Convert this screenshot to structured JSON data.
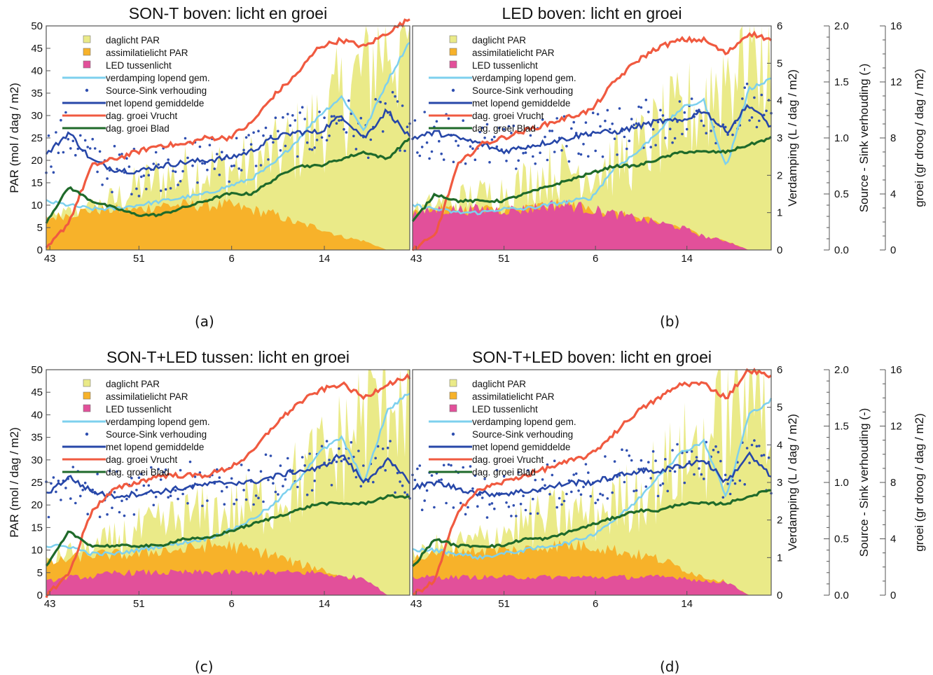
{
  "captions": [
    "(a)",
    "(b)",
    "(c)",
    "(d)"
  ],
  "colors": {
    "daglicht": "#eaea88",
    "assimilatie": "#f7b22a",
    "led": "#e2509a",
    "verdamping": "#7dd0ee",
    "sourcesink_dots": "#2f4fb0",
    "sourcesink_avg": "#2747a8",
    "vrucht": "#f05a40",
    "blad": "#1f6a2a",
    "frame": "#555555"
  },
  "shared_axes": {
    "x_ticks": [
      "43",
      "51",
      "6",
      "14"
    ],
    "left_label": "PAR (mol / dag / m2)",
    "left_ticks": [
      "0",
      "5",
      "10",
      "15",
      "20",
      "25",
      "30",
      "35",
      "40",
      "45",
      "50"
    ],
    "verdamping_label": "Verdamping (L / dag / m2)",
    "verdamping_ticks": [
      "0",
      "1",
      "2",
      "3",
      "4",
      "5",
      "6"
    ],
    "ss_label": "Source - Sink verhouding (-)",
    "ss_ticks": [
      "0.0",
      "0.5",
      "1.0",
      "1.5",
      "2.0"
    ],
    "groei_label": "groei (gr droog / dag / m2)",
    "groei_ticks": [
      "0",
      "4",
      "8",
      "12",
      "16"
    ]
  },
  "chart_data": [
    {
      "type": "area",
      "title": "SON-T boven: licht en groei",
      "x_ticks": [
        "43",
        "51",
        "6",
        "14"
      ],
      "ylabel": "PAR (mol / dag / m2)",
      "ylim": [
        0,
        50
      ],
      "legend": [
        {
          "name": "daglicht PAR",
          "kind": "box",
          "color": "#eaea88"
        },
        {
          "name": "assimilatielicht PAR",
          "kind": "box",
          "color": "#f7b22a"
        },
        {
          "name": "LED tussenlicht",
          "kind": "box",
          "color": "#e2509a"
        },
        {
          "name": "verdamping lopend gem.",
          "kind": "line",
          "color": "#7dd0ee"
        },
        {
          "name": "Source-Sink verhouding",
          "kind": "dot",
          "color": "#2f4fb0"
        },
        {
          "name": "met lopend gemiddelde",
          "kind": "line",
          "color": "#2747a8"
        },
        {
          "name": "dag. groei Vrucht",
          "kind": "line",
          "color": "#f05a40"
        },
        {
          "name": "dag. groei Blad",
          "kind": "line",
          "color": "#1f6a2a"
        }
      ],
      "daglicht_total": [
        4,
        6,
        7,
        9,
        12,
        14,
        15,
        16,
        16,
        17,
        19,
        22,
        26,
        31,
        38,
        46,
        44
      ],
      "assimilatie_total": [
        7,
        8,
        9,
        9,
        9,
        10,
        10,
        10,
        10,
        9,
        8,
        6,
        5,
        3,
        2,
        0,
        0
      ],
      "led": [
        0,
        0,
        0,
        0,
        0,
        0,
        0,
        0,
        0,
        0,
        0,
        0,
        0,
        0,
        0,
        0,
        0
      ],
      "verdamping": [
        1.3,
        1.2,
        1.1,
        1.1,
        1.2,
        1.3,
        1.4,
        1.5,
        1.7,
        1.9,
        2.3,
        2.9,
        3.6,
        4.1,
        3.2,
        4.5,
        5.6
      ],
      "sourcesink": [
        0.85,
        1.05,
        0.8,
        0.72,
        0.7,
        0.75,
        0.78,
        0.8,
        0.82,
        0.88,
        1.0,
        1.05,
        1.05,
        1.2,
        1.0,
        1.25,
        1.0
      ],
      "vrucht": [
        0,
        2,
        6,
        6.5,
        7,
        7.5,
        7.5,
        8,
        8,
        9,
        11,
        12.5,
        14.5,
        15,
        14.5,
        15.5,
        16.5
      ],
      "blad": [
        2,
        4.5,
        3.5,
        3,
        2.5,
        2.5,
        3,
        3.5,
        4,
        4,
        5,
        6,
        6,
        6.5,
        7,
        6.5,
        8
      ]
    },
    {
      "type": "area",
      "title": "LED boven: licht en groei",
      "x_ticks": [
        "43",
        "51",
        "6",
        "14"
      ],
      "ylabel": "Verdamping (L / dag / m2)",
      "ylim": [
        0,
        6
      ],
      "legend": [
        {
          "name": "daglicht PAR",
          "kind": "box",
          "color": "#eaea88"
        },
        {
          "name": "assimilatielicht PAR",
          "kind": "box",
          "color": "#f7b22a"
        },
        {
          "name": "LED tussenlicht",
          "kind": "box",
          "color": "#e2509a"
        },
        {
          "name": "verdamping lopend gem.",
          "kind": "line",
          "color": "#7dd0ee"
        },
        {
          "name": "Source-Sink verhouding",
          "kind": "dot",
          "color": "#2f4fb0"
        },
        {
          "name": "met lopend gemiddelde",
          "kind": "line",
          "color": "#2747a8"
        },
        {
          "name": "dag. groei Vrucht",
          "kind": "line",
          "color": "#f05a40"
        },
        {
          "name": "dag. groei Blad",
          "kind": "line",
          "color": "#1f6a2a"
        }
      ],
      "daglicht_total": [
        6,
        8,
        9,
        10,
        11,
        13,
        15,
        16,
        16,
        17,
        20,
        24,
        27,
        31,
        38,
        45,
        44
      ],
      "assimilatie_total": [
        8,
        9,
        9,
        9,
        9,
        9,
        10,
        10,
        9,
        8,
        7,
        6,
        5,
        3,
        2,
        0,
        0
      ],
      "led": [
        8,
        9,
        9,
        9,
        9,
        9,
        10,
        10,
        9,
        8,
        7,
        6,
        5,
        3,
        2,
        0,
        0
      ],
      "verdamping": [
        1.2,
        1.1,
        1.0,
        1.0,
        1.1,
        1.1,
        1.2,
        1.3,
        1.4,
        2.2,
        2.6,
        3.2,
        3.8,
        4.0,
        2.2,
        4.3,
        4.6
      ],
      "sourcesink": [
        1.0,
        1.05,
        1.0,
        0.95,
        0.88,
        0.92,
        0.96,
        1.0,
        1.05,
        1.05,
        1.1,
        1.15,
        1.15,
        1.25,
        1.05,
        1.3,
        1.1
      ],
      "vrucht": [
        0,
        1,
        6,
        7.5,
        8,
        8.5,
        9,
        9.5,
        10,
        12,
        13.5,
        14.5,
        15,
        15,
        14,
        15.5,
        15
      ],
      "blad": [
        2,
        4,
        3.5,
        3.5,
        3.5,
        4,
        4.5,
        5,
        5.5,
        6,
        6,
        6.5,
        7,
        7,
        7,
        7.5,
        8
      ]
    },
    {
      "type": "area",
      "title": "SON-T+LED tussen: licht en groei",
      "x_ticks": [
        "43",
        "51",
        "6",
        "14"
      ],
      "ylabel": "PAR (mol / dag / m2)",
      "ylim": [
        0,
        50
      ],
      "legend": [
        {
          "name": "daglicht PAR",
          "kind": "box",
          "color": "#eaea88"
        },
        {
          "name": "assimilatielicht PAR",
          "kind": "box",
          "color": "#f7b22a"
        },
        {
          "name": "LED tussenlicht",
          "kind": "box",
          "color": "#e2509a"
        },
        {
          "name": "verdamping lopend gem.",
          "kind": "line",
          "color": "#7dd0ee"
        },
        {
          "name": "Source-Sink verhouding",
          "kind": "dot",
          "color": "#2f4fb0"
        },
        {
          "name": "met lopend gemiddelde",
          "kind": "line",
          "color": "#2747a8"
        },
        {
          "name": "dag. groei Vrucht",
          "kind": "line",
          "color": "#f05a40"
        },
        {
          "name": "dag. groei Blad",
          "kind": "line",
          "color": "#1f6a2a"
        }
      ],
      "daglicht_total": [
        5,
        7,
        8,
        10,
        12,
        13,
        15,
        16,
        16,
        18,
        20,
        23,
        27,
        31,
        38,
        45,
        44
      ],
      "assimilatie_total": [
        7,
        8,
        9,
        9,
        9,
        10,
        10,
        11,
        11,
        10,
        9,
        7,
        6,
        4,
        3,
        0,
        0
      ],
      "led": [
        3,
        4,
        4,
        5,
        5,
        5,
        5,
        5,
        5,
        5,
        5,
        5,
        5,
        4,
        4,
        0,
        0
      ],
      "verdamping": [
        1.3,
        1.3,
        1.1,
        1.1,
        1.2,
        1.3,
        1.4,
        1.5,
        1.7,
        2.0,
        2.4,
        3.0,
        3.8,
        4.2,
        3.0,
        4.9,
        5.4
      ],
      "sourcesink": [
        0.9,
        1.05,
        0.92,
        0.88,
        0.9,
        0.92,
        0.95,
        0.98,
        1.0,
        1.0,
        1.05,
        1.1,
        1.12,
        1.25,
        1.0,
        1.2,
        1.0
      ],
      "vrucht": [
        0,
        1.5,
        6,
        7.5,
        8,
        8.5,
        8.5,
        8.5,
        9,
        10,
        12,
        13.5,
        14.5,
        15,
        14,
        15,
        15.5
      ],
      "blad": [
        2,
        4.5,
        3.5,
        3.5,
        3.5,
        3.5,
        4,
        4,
        4.5,
        5,
        5.5,
        6,
        6.5,
        6.5,
        6.5,
        7,
        7
      ]
    },
    {
      "type": "area",
      "title": "SON-T+LED boven: licht en groei",
      "x_ticks": [
        "43",
        "51",
        "6",
        "14"
      ],
      "ylabel": "Verdamping (L / dag / m2)",
      "ylim": [
        0,
        6
      ],
      "legend": [
        {
          "name": "daglicht PAR",
          "kind": "box",
          "color": "#eaea88"
        },
        {
          "name": "assimilatielicht PAR",
          "kind": "box",
          "color": "#f7b22a"
        },
        {
          "name": "LED tussenlicht",
          "kind": "box",
          "color": "#e2509a"
        },
        {
          "name": "verdamping lopend gem.",
          "kind": "line",
          "color": "#7dd0ee"
        },
        {
          "name": "Source-Sink verhouding",
          "kind": "dot",
          "color": "#2f4fb0"
        },
        {
          "name": "met lopend gemiddelde",
          "kind": "line",
          "color": "#2747a8"
        },
        {
          "name": "dag. groei Vrucht",
          "kind": "line",
          "color": "#f05a40"
        },
        {
          "name": "dag. groei Blad",
          "kind": "line",
          "color": "#1f6a2a"
        }
      ],
      "daglicht_total": [
        6,
        8,
        9,
        10,
        12,
        14,
        15,
        16,
        16,
        18,
        21,
        24,
        28,
        32,
        38,
        46,
        45
      ],
      "assimilatie_total": [
        8,
        9,
        10,
        10,
        10,
        10,
        11,
        11,
        11,
        10,
        9,
        8,
        6,
        4,
        3,
        0,
        0
      ],
      "led": [
        4,
        4,
        4,
        4,
        4,
        4,
        4,
        4,
        4,
        4,
        4,
        4,
        4,
        3,
        3,
        0,
        0
      ],
      "verdamping": [
        1.2,
        1.2,
        1.1,
        1.0,
        1.1,
        1.2,
        1.3,
        1.4,
        1.6,
        2.0,
        2.5,
        3.2,
        3.8,
        4.1,
        2.6,
        4.8,
        5.2
      ],
      "sourcesink": [
        0.95,
        1.0,
        0.95,
        0.9,
        0.9,
        0.92,
        0.95,
        1.0,
        1.0,
        1.05,
        1.1,
        1.1,
        1.15,
        1.2,
        1.0,
        1.25,
        1.05
      ],
      "vrucht": [
        0,
        1,
        6,
        7.5,
        8,
        8.5,
        9,
        9.5,
        10,
        11.5,
        13,
        14,
        15,
        15,
        14,
        16,
        15.5
      ],
      "blad": [
        2,
        4,
        3.5,
        3.5,
        3.5,
        4,
        4,
        4.5,
        5,
        5.5,
        6,
        6,
        6.5,
        6.5,
        6.5,
        7,
        7.5
      ]
    }
  ]
}
